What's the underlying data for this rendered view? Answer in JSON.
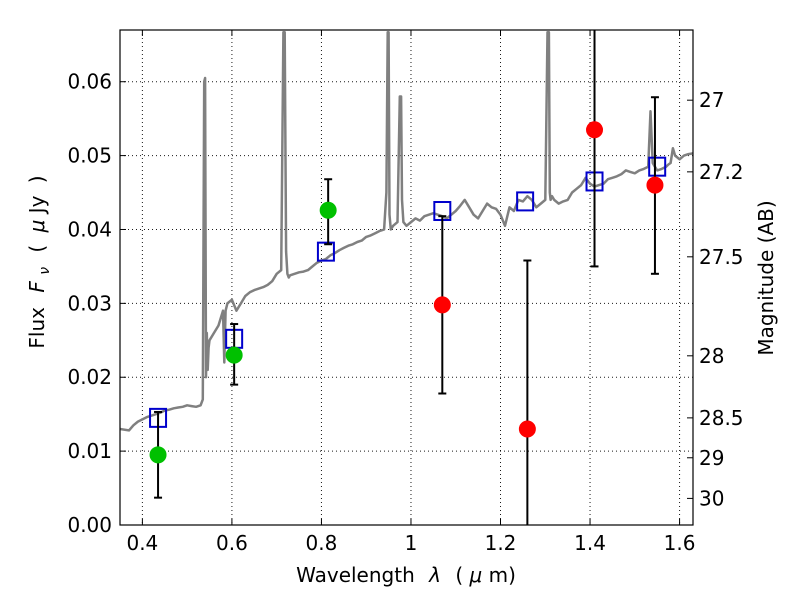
{
  "chart_data": {
    "type": "scatter",
    "title": "",
    "xlabel_parts": [
      "Wavelength",
      "λ",
      "(",
      "μ",
      "m)"
    ],
    "ylabel_parts": [
      "Flux",
      "F",
      "ν",
      "(",
      "μ",
      "Jy",
      ")"
    ],
    "y2label": "Magnitude (AB)",
    "xlim": [
      0.35,
      1.63
    ],
    "ylim": [
      0.0,
      0.067
    ],
    "grid": true,
    "x_ticks": [
      {
        "value": 0.4,
        "label": "0.4"
      },
      {
        "value": 0.6,
        "label": "0.6"
      },
      {
        "value": 0.8,
        "label": "0.8"
      },
      {
        "value": 1.0,
        "label": "1"
      },
      {
        "value": 1.2,
        "label": "1.2"
      },
      {
        "value": 1.4,
        "label": "1.4"
      },
      {
        "value": 1.6,
        "label": "1.6"
      }
    ],
    "y_ticks": [
      {
        "value": 0.0,
        "label": "0.00"
      },
      {
        "value": 0.01,
        "label": "0.01"
      },
      {
        "value": 0.02,
        "label": "0.02"
      },
      {
        "value": 0.03,
        "label": "0.03"
      },
      {
        "value": 0.04,
        "label": "0.04"
      },
      {
        "value": 0.05,
        "label": "0.05"
      },
      {
        "value": 0.06,
        "label": "0.06"
      }
    ],
    "y2_ticks": [
      {
        "label": "27",
        "flux": 0.0575
      },
      {
        "label": "27.2",
        "flux": 0.0478
      },
      {
        "label": "27.5",
        "flux": 0.0363
      },
      {
        "label": "28",
        "flux": 0.0229
      },
      {
        "label": "28.5",
        "flux": 0.0145
      },
      {
        "label": "29",
        "flux": 0.0091
      },
      {
        "label": "30",
        "flux": 0.0036
      }
    ],
    "series": [
      {
        "kind": "line",
        "color": "#808080",
        "x": [
          0.35,
          0.37,
          0.38,
          0.39,
          0.4,
          0.41,
          0.42,
          0.43,
          0.44,
          0.45,
          0.46,
          0.47,
          0.48,
          0.49,
          0.5,
          0.51,
          0.52,
          0.53,
          0.535,
          0.538,
          0.54,
          0.542,
          0.544,
          0.546,
          0.548,
          0.55,
          0.56,
          0.57,
          0.58,
          0.583,
          0.586,
          0.59,
          0.6,
          0.61,
          0.62,
          0.63,
          0.64,
          0.65,
          0.66,
          0.67,
          0.68,
          0.69,
          0.7,
          0.71,
          0.715,
          0.718,
          0.721,
          0.724,
          0.727,
          0.73,
          0.74,
          0.75,
          0.76,
          0.77,
          0.78,
          0.79,
          0.8,
          0.81,
          0.82,
          0.83,
          0.84,
          0.85,
          0.86,
          0.87,
          0.88,
          0.89,
          0.9,
          0.91,
          0.92,
          0.93,
          0.94,
          0.945,
          0.948,
          0.95,
          0.952,
          0.955,
          0.96,
          0.97,
          0.975,
          0.978,
          0.98,
          0.983,
          0.99,
          1.0,
          1.01,
          1.02,
          1.03,
          1.04,
          1.05,
          1.06,
          1.07,
          1.08,
          1.09,
          1.1,
          1.11,
          1.12,
          1.13,
          1.14,
          1.15,
          1.16,
          1.17,
          1.18,
          1.19,
          1.2,
          1.21,
          1.22,
          1.23,
          1.24,
          1.25,
          1.26,
          1.27,
          1.28,
          1.29,
          1.3,
          1.305,
          1.308,
          1.31,
          1.312,
          1.315,
          1.32,
          1.33,
          1.34,
          1.35,
          1.36,
          1.37,
          1.38,
          1.39,
          1.4,
          1.41,
          1.42,
          1.43,
          1.44,
          1.45,
          1.46,
          1.47,
          1.48,
          1.49,
          1.5,
          1.51,
          1.52,
          1.53,
          1.535,
          1.54,
          1.545,
          1.55,
          1.56,
          1.57,
          1.575,
          1.58,
          1.585,
          1.59,
          1.6,
          1.61,
          1.62,
          1.63
        ],
        "y": [
          0.013,
          0.0128,
          0.0135,
          0.014,
          0.0143,
          0.0146,
          0.0148,
          0.015,
          0.0152,
          0.0155,
          0.0156,
          0.0158,
          0.0159,
          0.016,
          0.0162,
          0.0161,
          0.016,
          0.0162,
          0.017,
          0.06,
          0.0605,
          0.02,
          0.026,
          0.021,
          0.024,
          0.025,
          0.026,
          0.027,
          0.029,
          0.022,
          0.029,
          0.03,
          0.0305,
          0.029,
          0.03,
          0.031,
          0.0315,
          0.0318,
          0.032,
          0.0322,
          0.0325,
          0.033,
          0.034,
          0.0345,
          0.0667,
          0.0667,
          0.037,
          0.034,
          0.0335,
          0.0338,
          0.034,
          0.0342,
          0.0343,
          0.0345,
          0.035,
          0.0355,
          0.0358,
          0.036,
          0.0365,
          0.0368,
          0.0372,
          0.0375,
          0.0378,
          0.038,
          0.0383,
          0.0385,
          0.039,
          0.0392,
          0.0395,
          0.0398,
          0.04,
          0.045,
          0.0667,
          0.0667,
          0.042,
          0.04,
          0.0405,
          0.041,
          0.058,
          0.058,
          0.044,
          0.041,
          0.0405,
          0.041,
          0.0415,
          0.0412,
          0.0418,
          0.042,
          0.0422,
          0.042,
          0.0418,
          0.0415,
          0.042,
          0.0425,
          0.0432,
          0.044,
          0.043,
          0.042,
          0.0415,
          0.0425,
          0.0435,
          0.043,
          0.0428,
          0.042,
          0.0405,
          0.043,
          0.0425,
          0.044,
          0.0438,
          0.0445,
          0.044,
          0.043,
          0.0435,
          0.044,
          0.0667,
          0.0667,
          0.045,
          0.044,
          0.0445,
          0.044,
          0.0435,
          0.0438,
          0.044,
          0.045,
          0.0455,
          0.046,
          0.047,
          0.0462,
          0.0458,
          0.046,
          0.0462,
          0.0468,
          0.047,
          0.0472,
          0.0475,
          0.048,
          0.0478,
          0.0476,
          0.048,
          0.0482,
          0.0485,
          0.056,
          0.049,
          0.0485,
          0.048,
          0.0482,
          0.0485,
          0.0488,
          0.049,
          0.051,
          0.05,
          0.0495,
          0.05,
          0.0502,
          0.0503
        ]
      },
      {
        "kind": "scatter",
        "marker": "square-open",
        "color": "#0000cc",
        "x": [
          0.435,
          0.605,
          0.81,
          1.07,
          1.255,
          1.41,
          1.55
        ],
        "y": [
          0.0145,
          0.0252,
          0.037,
          0.0425,
          0.0438,
          0.0465,
          0.0485
        ]
      },
      {
        "kind": "scatter",
        "marker": "circle",
        "color": "#00c000",
        "x": [
          0.435,
          0.605,
          0.815
        ],
        "y": [
          0.0095,
          0.023,
          0.0426
        ],
        "yerr_low": [
          0.0037,
          0.019,
          0.038
        ],
        "yerr_high": [
          0.0153,
          0.0272,
          0.0468
        ]
      },
      {
        "kind": "scatter",
        "marker": "circle",
        "color": "#ff0000",
        "x": [
          1.07,
          1.26,
          1.41,
          1.545
        ],
        "y": [
          0.0298,
          0.013,
          0.0535,
          0.046
        ],
        "yerr_low": [
          0.0178,
          0.0,
          0.035,
          0.034
        ],
        "yerr_high": [
          0.0418,
          0.0358,
          0.067,
          0.0579
        ]
      }
    ]
  }
}
